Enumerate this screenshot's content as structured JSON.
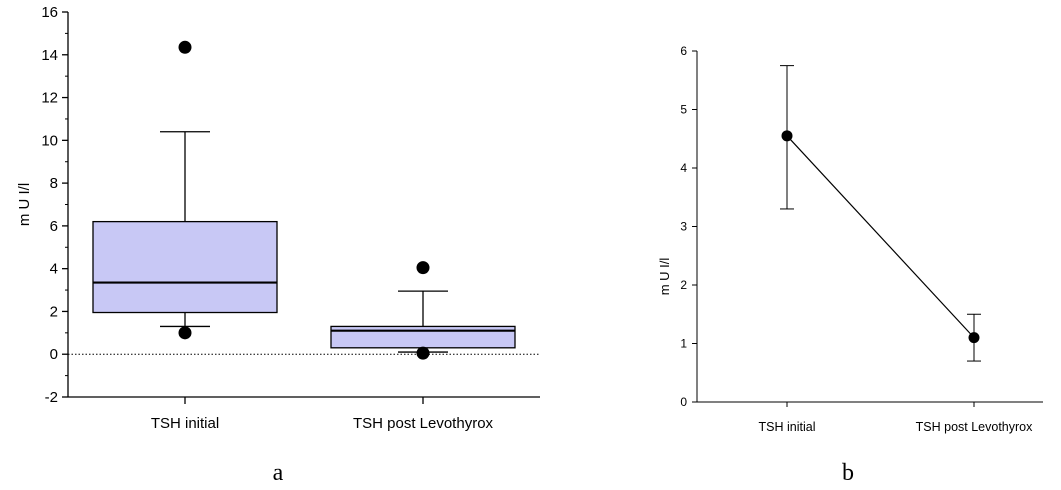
{
  "chart_data": [
    {
      "panel": "a",
      "type": "box",
      "ylabel": "m U I/l",
      "ylim": [
        -2,
        16
      ],
      "yticks": [
        -2,
        0,
        2,
        4,
        6,
        8,
        10,
        12,
        14,
        16
      ],
      "reference_line": 0,
      "categories": [
        "TSH initial",
        "TSH post Levothyrox"
      ],
      "boxes": [
        {
          "category": "TSH initial",
          "whisker_low": 1.3,
          "q1": 1.95,
          "median": 3.35,
          "q3": 6.2,
          "whisker_high": 10.4,
          "outliers": [
            14.35,
            1.0
          ]
        },
        {
          "category": "TSH post Levothyrox",
          "whisker_low": 0.1,
          "q1": 0.3,
          "median": 1.1,
          "q3": 1.3,
          "whisker_high": 2.95,
          "outliers": [
            4.05,
            0.05
          ]
        }
      ],
      "box_color": "#c8c8f5"
    },
    {
      "panel": "b",
      "type": "line",
      "ylabel": "m U I/l",
      "ylim": [
        0,
        6
      ],
      "yticks": [
        0,
        1,
        2,
        3,
        4,
        5,
        6
      ],
      "categories": [
        "TSH initial",
        "TSH post Levothyrox"
      ],
      "values": [
        4.55,
        1.1
      ],
      "error_low": [
        3.3,
        0.7
      ],
      "error_high": [
        5.75,
        1.5
      ]
    }
  ]
}
